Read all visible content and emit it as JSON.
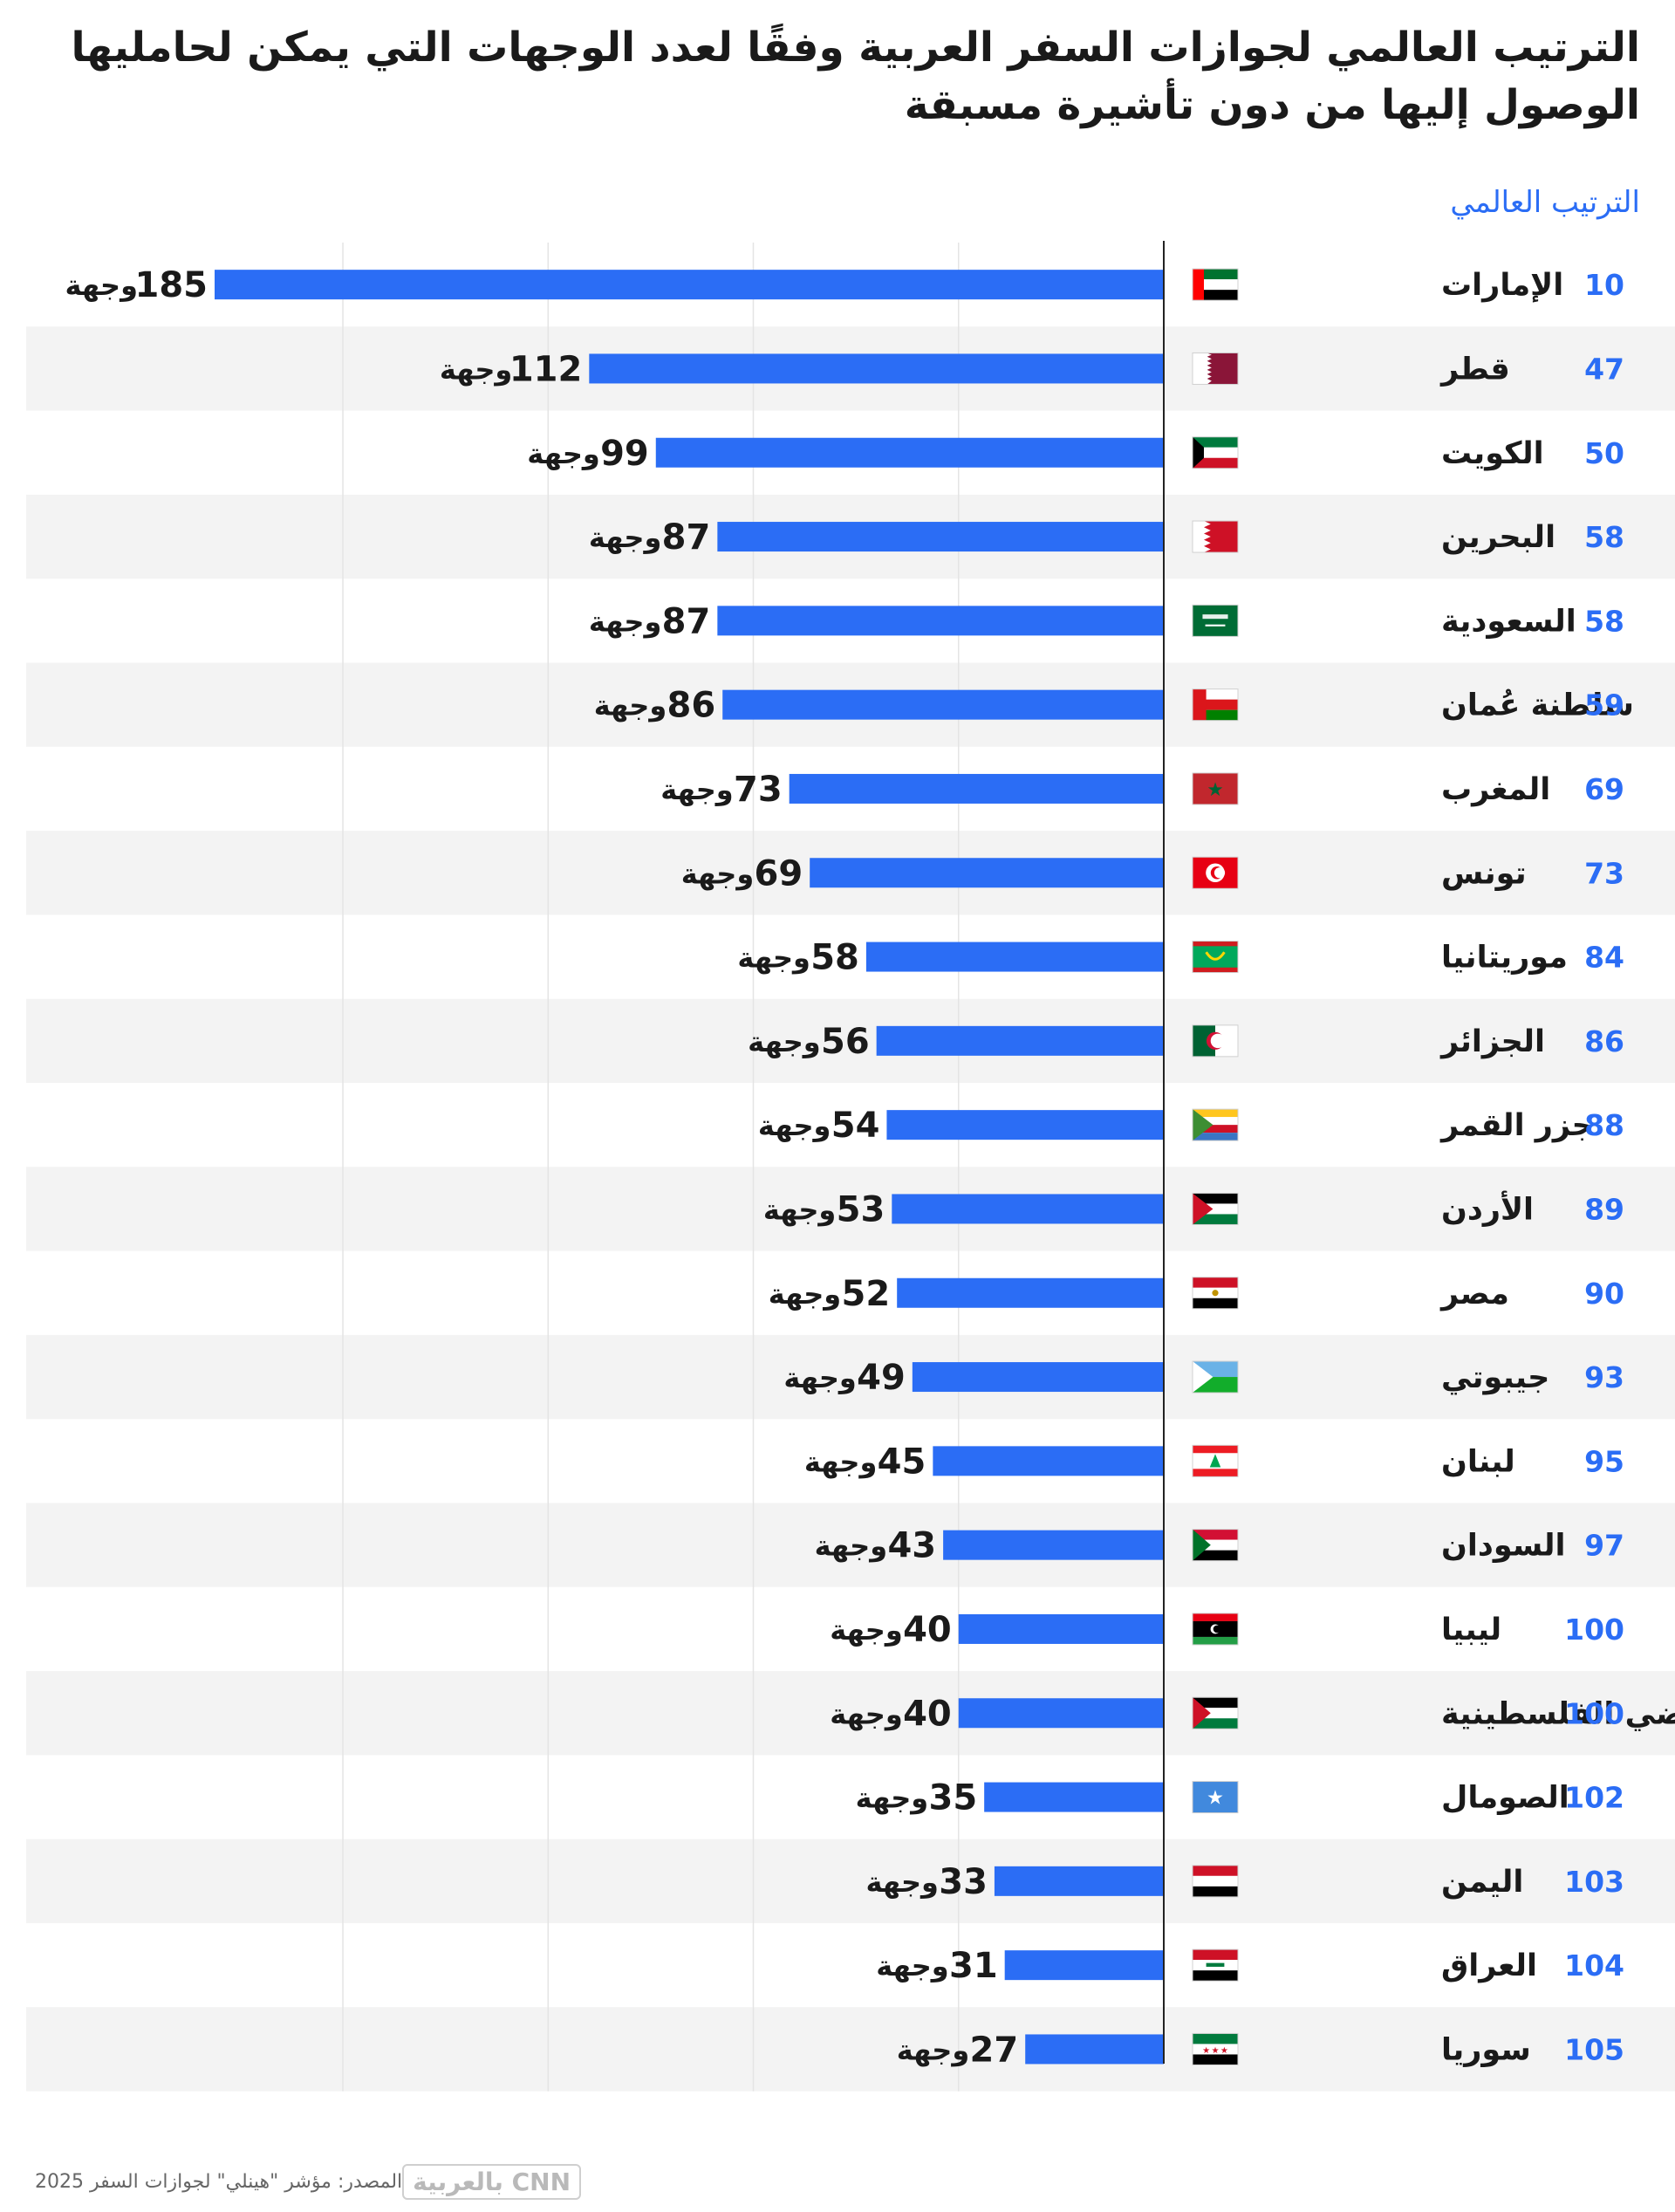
{
  "title": "الترتيب العالمي لجوازات السفر العربية وفقًا لعدد الوجهات التي يمكن لحامليها الوصول إليها من دون تأشيرة مسبقة",
  "rank_header": "الترتيب العالمي",
  "unit": "وجهة",
  "source": "المصدر: مؤشر \"هينلي\" لجوازات السفر 2025",
  "brand": "CNN بالعربية",
  "colors": {
    "bar": "#2b6df5",
    "rank": "#2b6df5",
    "stripe": "#f3f3f3",
    "axis": "#222222",
    "grid": "#e4e4e4"
  },
  "chart_data": {
    "type": "bar",
    "orientation": "horizontal",
    "xlim": [
      0,
      185
    ],
    "grid": true,
    "categories": [
      "الإمارات",
      "قطر",
      "الكويت",
      "البحرين",
      "السعودية",
      "سلطنة عُمان",
      "المغرب",
      "تونس",
      "موريتانيا",
      "الجزائر",
      "جزر القمر",
      "الأردن",
      "مصر",
      "جيبوتي",
      "لبنان",
      "السودان",
      "ليبيا",
      "الأراضي الفلسطينية",
      "الصومال",
      "اليمن",
      "العراق",
      "سوريا"
    ],
    "values": [
      185,
      112,
      99,
      87,
      87,
      86,
      73,
      69,
      58,
      56,
      54,
      53,
      52,
      49,
      45,
      43,
      40,
      40,
      35,
      33,
      31,
      27
    ],
    "ranks": [
      10,
      47,
      50,
      58,
      58,
      59,
      69,
      73,
      84,
      86,
      88,
      89,
      90,
      93,
      95,
      97,
      100,
      100,
      102,
      103,
      104,
      105
    ],
    "flags": [
      "uae-flag",
      "qatar-flag",
      "kuwait-flag",
      "bahrain-flag",
      "saudi-flag",
      "oman-flag",
      "morocco-flag",
      "tunisia-flag",
      "mauritania-flag",
      "algeria-flag",
      "comoros-flag",
      "jordan-flag",
      "egypt-flag",
      "djibouti-flag",
      "lebanon-flag",
      "sudan-flag",
      "libya-flag",
      "palestine-flag",
      "somalia-flag",
      "yemen-flag",
      "iraq-flag",
      "syria-flag"
    ]
  }
}
